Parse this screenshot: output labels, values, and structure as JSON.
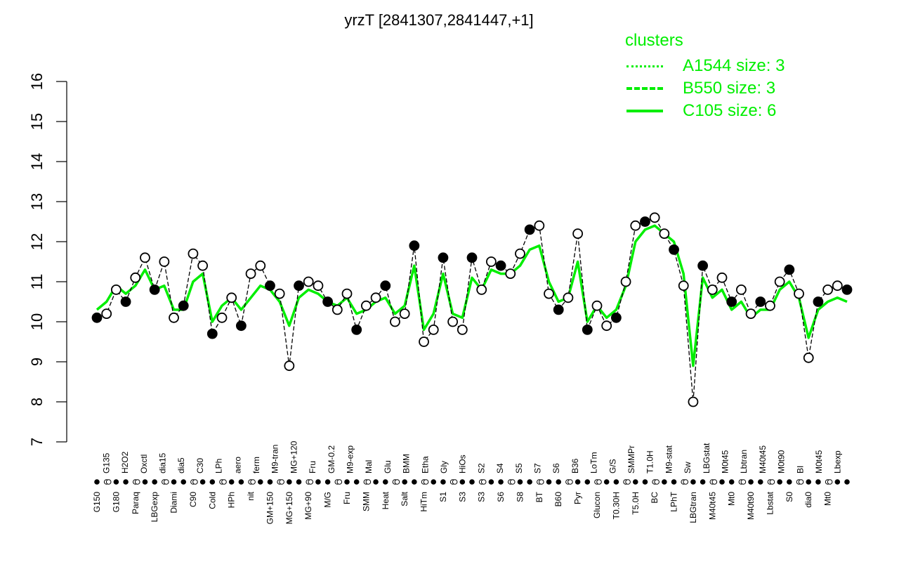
{
  "chart_data": {
    "type": "line",
    "title": "yrzT [2841307,2841447,+1]",
    "xlabel": "",
    "ylabel": "",
    "ylim": [
      7,
      16
    ],
    "yticks": [
      7,
      8,
      9,
      10,
      11,
      12,
      13,
      14,
      15,
      16
    ],
    "grid": false,
    "legend": {
      "title": "clusters",
      "position": "top-right",
      "entries": [
        {
          "name": "A1544 size: 3",
          "style": "dotted"
        },
        {
          "name": "B550 size: 3",
          "style": "dashed"
        },
        {
          "name": "C105 size: 6",
          "style": "solid"
        }
      ],
      "color": "#00ee00"
    },
    "x_tick_labels_top": [
      "G135",
      "H2O2",
      "Oxctl",
      "dia15",
      "dia5",
      "C30",
      "LPh",
      "aero",
      "ferm",
      "M9-tran",
      "MG+120",
      "Fru",
      "GM-0.2",
      "M9-exp",
      "Mal",
      "Glu",
      "BMM",
      "Etha",
      "Gly",
      "HiOs",
      "S2",
      "S4",
      "S5",
      "S7",
      "S6",
      "B36",
      "LoTm",
      "G/S",
      "SMMPr",
      "T1.0H",
      "M9-stat",
      "Sw",
      "LBGstat",
      "M0t45",
      "Lbtran",
      "M40t45",
      "M0t90",
      "BI",
      "M0t45",
      "Lbexp"
    ],
    "x_tick_labels_bottom": [
      "G150",
      "G180",
      "Paraq",
      "LBGexp",
      "Diami",
      "C90",
      "Cold",
      "HPh",
      "nit",
      "GM+150",
      "MG+150",
      "MG+90",
      "M/G",
      "Fru",
      "SMM",
      "Heat",
      "Salt",
      "HiTm",
      "S1",
      "S3",
      "S3",
      "S6",
      "S8",
      "BT",
      "B60",
      "Pyr",
      "Glucon",
      "T0.30H",
      "T5.0H",
      "BC",
      "LPhT",
      "LBGtran",
      "M40t45",
      "Mt0",
      "M40t90",
      "Lbstat",
      "S0",
      "dia0",
      "Mt0"
    ],
    "series": [
      {
        "name": "gene-expression-points",
        "x": [
          "G150",
          "G180",
          "G135",
          "H2O2",
          "Paraq",
          "LBGexp",
          "Oxctl",
          "dia15",
          "Diami",
          "dia5",
          "C90",
          "C30",
          "Cold",
          "LPh",
          "HPh",
          "aero",
          "nit",
          "ferm",
          "GM+150",
          "M9-tran",
          "MG+150",
          "MG+120",
          "MG+90",
          "Fru",
          "GM-0.2",
          "M9-exp",
          "M/G",
          "Mal",
          "Fru",
          "Glu",
          "SMM",
          "BMM",
          "Heat",
          "Etha",
          "Salt",
          "Gly",
          "HiTm",
          "HiOs",
          "S1",
          "S2",
          "S3",
          "S4",
          "S3",
          "S5",
          "S6",
          "S7",
          "S8",
          "S6",
          "BT",
          "B36",
          "B60",
          "LoTm",
          "Pyr",
          "G/S",
          "Glucon",
          "SMMPr",
          "T0.30H",
          "T1.0H",
          "T5.0H",
          "M9-stat",
          "BC",
          "Sw",
          "LPhT",
          "LBGstat",
          "LBGtran",
          "M0t45",
          "M40t45",
          "Lbtran",
          "Mt0",
          "M40t45",
          "M40t90",
          "M0t90",
          "Lbstat",
          "BI",
          "S0",
          "dia0",
          "M0t45",
          "Lbexp",
          "Mt0"
        ],
        "values": [
          10.1,
          10.2,
          10.8,
          10.5,
          11.1,
          11.6,
          10.8,
          11.5,
          10.1,
          10.4,
          11.7,
          11.4,
          9.7,
          10.1,
          10.6,
          9.9,
          11.2,
          11.4,
          10.9,
          10.7,
          8.9,
          10.9,
          11.0,
          10.9,
          10.5,
          10.3,
          10.7,
          9.8,
          10.4,
          10.6,
          10.9,
          10.0,
          10.2,
          11.9,
          9.5,
          9.8,
          11.6,
          10.0,
          9.8,
          11.6,
          10.8,
          11.5,
          11.4,
          11.2,
          11.7,
          12.3,
          12.4,
          10.7,
          10.3,
          10.6,
          12.2,
          9.8,
          10.4,
          9.9,
          10.1,
          11.0,
          12.4,
          12.5,
          12.6,
          12.2,
          11.8,
          10.9,
          8.0,
          11.4,
          10.8,
          11.1,
          10.5,
          10.8,
          10.2,
          10.5,
          10.4,
          11.0,
          11.3,
          10.7,
          9.1,
          10.5,
          10.8,
          10.9,
          10.8
        ]
      },
      {
        "name": "C105 cluster mean",
        "style": "solid",
        "color": "#00ee00",
        "values": [
          10.3,
          10.5,
          10.9,
          10.7,
          10.9,
          11.3,
          10.8,
          10.9,
          10.3,
          10.3,
          11.0,
          11.2,
          10.0,
          10.4,
          10.6,
          10.3,
          10.6,
          10.9,
          10.8,
          10.5,
          9.9,
          10.6,
          10.8,
          10.7,
          10.5,
          10.4,
          10.6,
          10.2,
          10.3,
          10.5,
          10.6,
          10.2,
          10.4,
          11.4,
          9.8,
          10.2,
          11.2,
          10.2,
          10.1,
          11.1,
          10.8,
          11.3,
          11.2,
          11.2,
          11.4,
          11.8,
          11.9,
          11.0,
          10.5,
          10.6,
          11.5,
          10.0,
          10.4,
          10.1,
          10.3,
          10.9,
          12.0,
          12.3,
          12.4,
          12.2,
          12.0,
          11.2,
          8.9,
          11.1,
          10.6,
          10.8,
          10.3,
          10.5,
          10.1,
          10.3,
          10.3,
          10.8,
          11.0,
          10.6,
          9.6,
          10.3,
          10.5,
          10.6,
          10.5
        ]
      }
    ]
  }
}
